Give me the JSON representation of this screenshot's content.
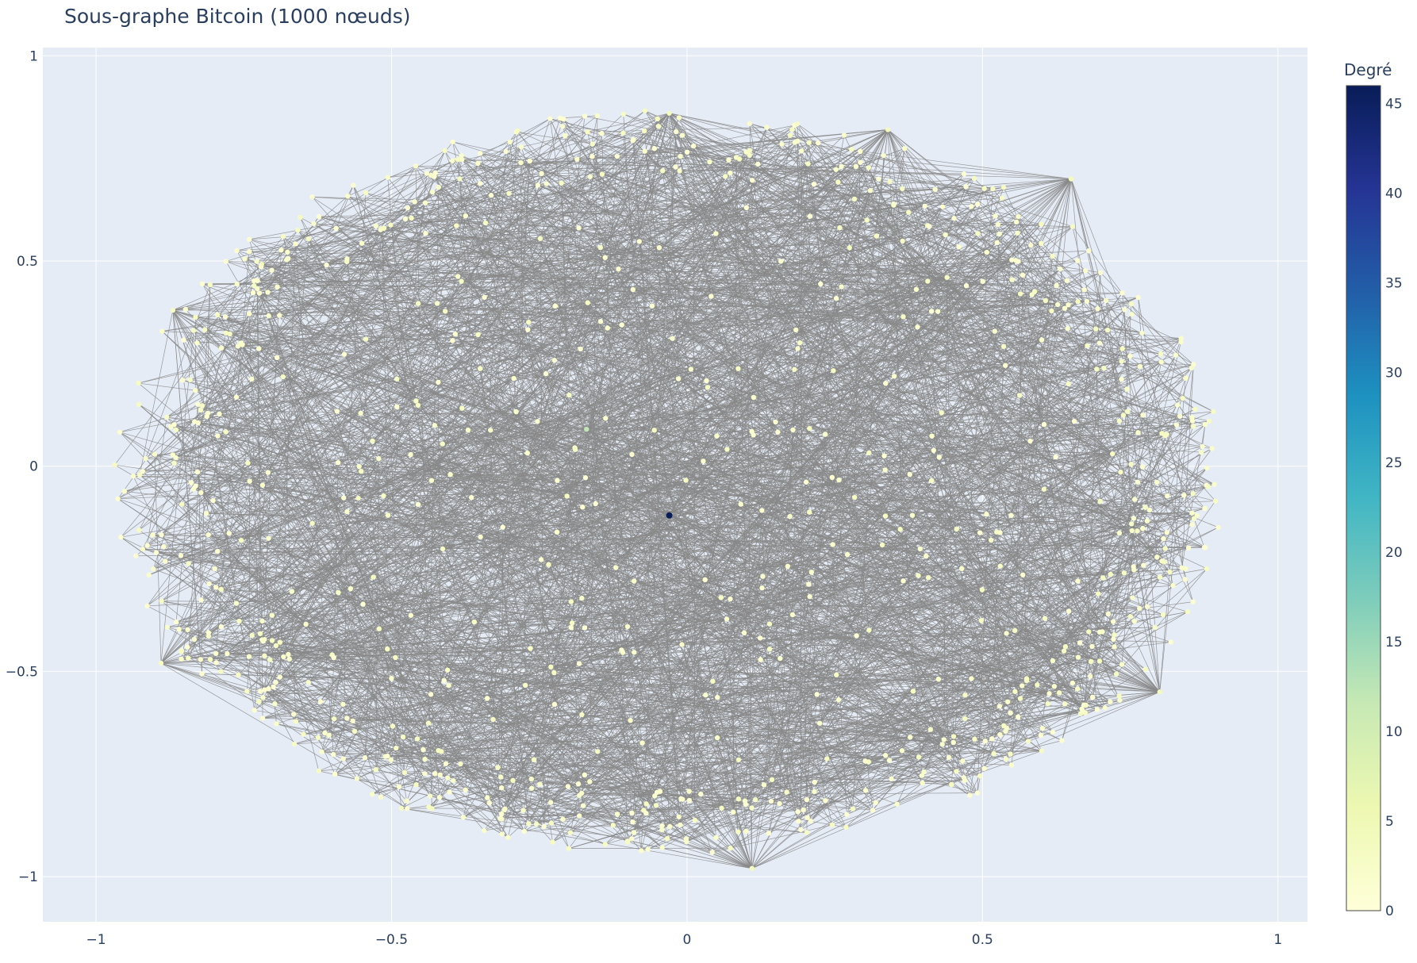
{
  "chart_data": {
    "type": "scatter",
    "subtype": "network-graph",
    "title": "Sous-graphe Bitcoin (1000 nœuds)",
    "xlabel": "",
    "ylabel": "",
    "xlim": [
      -1.09,
      1.05
    ],
    "ylim": [
      -1.11,
      1.02
    ],
    "x_ticks": [
      -1,
      -0.5,
      0,
      0.5,
      1
    ],
    "x_tick_labels": [
      "−1",
      "−0.5",
      "0",
      "0.5",
      "1"
    ],
    "y_ticks": [
      1,
      0.5,
      0,
      -0.5,
      -1
    ],
    "y_tick_labels": [
      "1",
      "0.5",
      "0",
      "−0.5",
      "−1"
    ],
    "grid": true,
    "plot_background": "#e5ecf6",
    "edge_color": "#888888",
    "node_count": 1000,
    "colorbar": {
      "title": "Degré",
      "min": 0,
      "max": 46,
      "ticks": [
        0,
        5,
        10,
        15,
        20,
        25,
        30,
        35,
        40,
        45
      ],
      "tick_labels": [
        "0",
        "5",
        "10",
        "15",
        "20",
        "25",
        "30",
        "35",
        "40",
        "45"
      ],
      "colorscale": [
        "#ffffd9",
        "#edf8b1",
        "#c7e9b4",
        "#7fcdbb",
        "#41b6c4",
        "#1d91c0",
        "#225ea8",
        "#253494",
        "#081d58"
      ]
    },
    "hubs": [
      {
        "x": -0.03,
        "y": 0.86,
        "degree": 4
      },
      {
        "x": 0.34,
        "y": 0.82,
        "degree": 4
      },
      {
        "x": 0.65,
        "y": 0.7,
        "degree": 4
      },
      {
        "x": 0.8,
        "y": -0.55,
        "degree": 4
      },
      {
        "x": 0.11,
        "y": -0.98,
        "degree": 4
      },
      {
        "x": -0.87,
        "y": 0.38,
        "degree": 3
      },
      {
        "x": -0.89,
        "y": -0.48,
        "degree": 3
      },
      {
        "x": 0.72,
        "y": 0.03,
        "degree": 3
      },
      {
        "x": 0.44,
        "y": 0.46,
        "degree": 3
      },
      {
        "x": -0.03,
        "y": -0.12,
        "degree": 46
      },
      {
        "x": -0.17,
        "y": 0.09,
        "degree": 12
      }
    ]
  }
}
